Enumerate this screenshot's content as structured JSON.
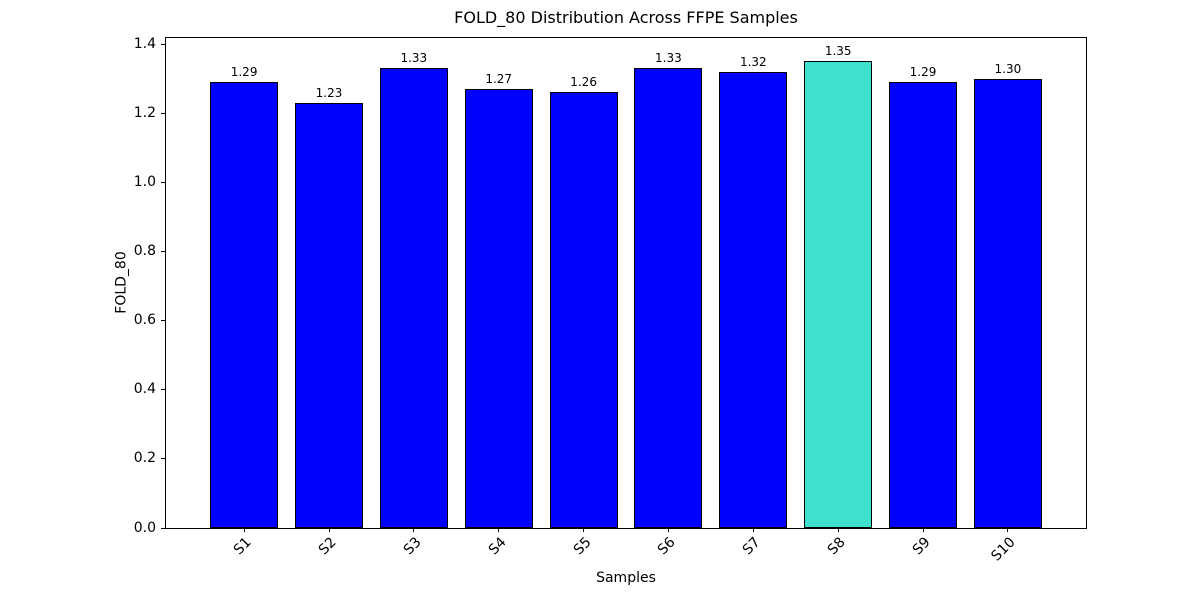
{
  "chart_data": {
    "type": "bar",
    "title": "FOLD_80 Distribution Across FFPE Samples",
    "xlabel": "Samples",
    "ylabel": "FOLD_80",
    "categories": [
      "S1",
      "S2",
      "S3",
      "S4",
      "S5",
      "S6",
      "S7",
      "S8",
      "S9",
      "S10"
    ],
    "values": [
      1.29,
      1.23,
      1.33,
      1.27,
      1.26,
      1.33,
      1.32,
      1.35,
      1.29,
      1.3
    ],
    "bar_value_labels": [
      "1.29",
      "1.23",
      "1.33",
      "1.27",
      "1.26",
      "1.33",
      "1.32",
      "1.35",
      "1.29",
      "1.30"
    ],
    "highlight_index": 7,
    "highlight_category": "S8",
    "colors": {
      "bar": "#0000ff",
      "highlight": "#40e0d0",
      "edge": "#000000",
      "text": "#000000",
      "background": "#ffffff"
    },
    "ylim": [
      0,
      1.4175
    ],
    "yticks": [
      0.0,
      0.2,
      0.4,
      0.6,
      0.8,
      1.0,
      1.2,
      1.4
    ],
    "ytick_labels": [
      "0.0",
      "0.2",
      "0.4",
      "0.6",
      "0.8",
      "1.0",
      "1.2",
      "1.4"
    ],
    "xtick_rotation_deg": 45,
    "bar_width_fraction": 0.8,
    "grid": false,
    "legend": null
  }
}
